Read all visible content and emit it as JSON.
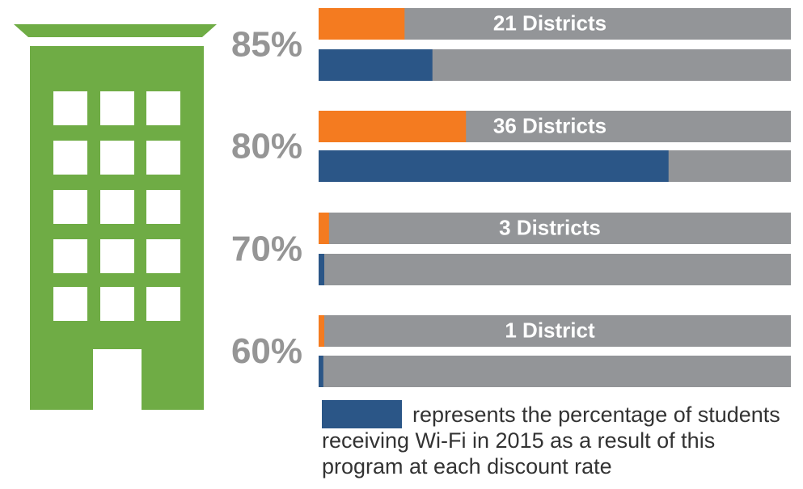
{
  "chart_data": {
    "type": "bar",
    "categories": [
      "85%",
      "80%",
      "70%",
      "60%"
    ],
    "annotations": [
      "21 Districts",
      "36 Districts",
      "3 Districts",
      "1 District"
    ],
    "series": [
      {
        "color": "#f47b20",
        "values": [
          18.2,
          31.2,
          2.2,
          1.2
        ]
      },
      {
        "name": "represents the percentage of students receiving Wi-Fi in 2015 as a result of this program at each discount rate",
        "color": "#2b5687",
        "values": [
          24.1,
          74.1,
          1.2,
          1.0
        ]
      }
    ],
    "track_color": "#939598",
    "xlim": [
      0,
      100
    ]
  }
}
